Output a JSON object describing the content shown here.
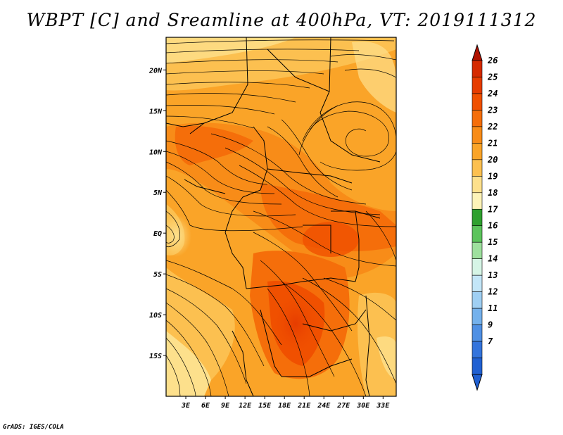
{
  "title": "WBPT [C] and Sreamline at 400hPa, VT: 2019111312",
  "credit": "GrADS: IGES/COLA",
  "map": {
    "variable": "Wet-bulb potential temperature with streamlines",
    "level": "400hPa",
    "valid_time": "2019111312",
    "lon_range": [
      0,
      35
    ],
    "lat_range": [
      -20,
      24
    ],
    "lat_ticks": [
      {
        "value": 20,
        "label": "20N"
      },
      {
        "value": 15,
        "label": "15N"
      },
      {
        "value": 10,
        "label": "10N"
      },
      {
        "value": 5,
        "label": "5N"
      },
      {
        "value": 0,
        "label": "EQ"
      },
      {
        "value": -5,
        "label": "5S"
      },
      {
        "value": -10,
        "label": "10S"
      },
      {
        "value": -15,
        "label": "15S"
      }
    ],
    "lon_ticks": [
      {
        "value": 3,
        "label": "3E"
      },
      {
        "value": 6,
        "label": "6E"
      },
      {
        "value": 9,
        "label": "9E"
      },
      {
        "value": 12,
        "label": "12E"
      },
      {
        "value": 15,
        "label": "15E"
      },
      {
        "value": 18,
        "label": "18E"
      },
      {
        "value": 21,
        "label": "21E"
      },
      {
        "value": 24,
        "label": "24E"
      },
      {
        "value": 27,
        "label": "27E"
      },
      {
        "value": 30,
        "label": "30E"
      },
      {
        "value": 33,
        "label": "33E"
      }
    ]
  },
  "colorbar": {
    "labels": [
      "26",
      "25",
      "24",
      "23",
      "22",
      "21",
      "20",
      "19",
      "18",
      "17",
      "16",
      "15",
      "14",
      "13",
      "12",
      "11",
      "9",
      "7"
    ],
    "colors": [
      "#d52a00",
      "#e63c00",
      "#f05000",
      "#f56e0a",
      "#f88c18",
      "#faa428",
      "#fcc050",
      "#fde08c",
      "#fdf3b8",
      "#2fa02f",
      "#5cc45c",
      "#9ee09e",
      "#d6f5e6",
      "#c3e6f8",
      "#9fcff3",
      "#74b1ec",
      "#4f90e4",
      "#3474dc",
      "#2060d2"
    ],
    "top_arrow_color": "#b01200",
    "bottom_arrow_color": "#2060d2"
  }
}
